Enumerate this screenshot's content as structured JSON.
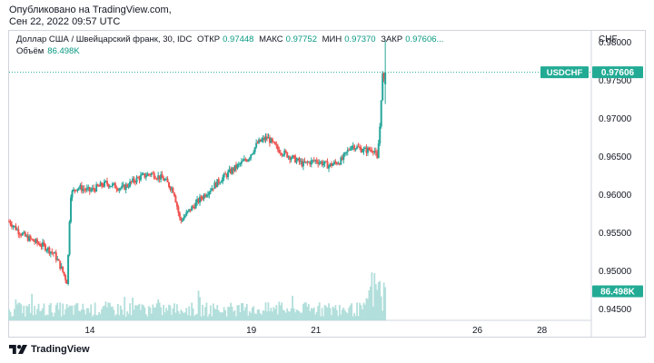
{
  "publication": {
    "line1": "Опубликовано на TradingView.com,",
    "line2": "Сен 22, 2022 09:57 UTC"
  },
  "legend": {
    "symbol_title": "Доллар США / Швейцарский франк, 30, IDC",
    "open_label": "ОТКР",
    "open_value": "0.97448",
    "high_label": "МАКС",
    "high_value": "0.97752",
    "low_label": "МИН",
    "low_value": "0.97370",
    "close_label": "ЗАКР",
    "close_value": "0.97606...",
    "volume_label": "Объём",
    "volume_value": "86.498K"
  },
  "price_scale": {
    "currency": "CHF",
    "last_symbol_label": "USDCHF",
    "last_price_label": "0.97606",
    "volume_label": "86.498K"
  },
  "brand": {
    "name": "TradingView"
  },
  "colors": {
    "up": "#26a69a",
    "down": "#ef5350",
    "volume": "#b2dfdb",
    "last_price": "#22ab94"
  },
  "chart_data": {
    "type": "candlestick",
    "y_ticks": [
      "0.98000",
      "0.97500",
      "0.97000",
      "0.96500",
      "0.96000",
      "0.95500",
      "0.95000",
      "0.94500"
    ],
    "y_tick_values": [
      0.98,
      0.975,
      0.97,
      0.965,
      0.96,
      0.955,
      0.95,
      0.945
    ],
    "ylim": [
      0.9435,
      0.9815
    ],
    "x_ticks": [
      "14",
      "19",
      "21",
      "26",
      "28"
    ],
    "x_tick_days": [
      14,
      19,
      21,
      26,
      28
    ],
    "xlim": [
      11.5,
      29.5
    ],
    "last_price": 0.97606,
    "path": [
      [
        11.5,
        0.9565
      ],
      [
        11.8,
        0.9552
      ],
      [
        12.0,
        0.9545
      ],
      [
        12.3,
        0.9538
      ],
      [
        12.6,
        0.9532
      ],
      [
        12.9,
        0.9522
      ],
      [
        13.1,
        0.9505
      ],
      [
        13.3,
        0.9485
      ],
      [
        13.4,
        0.96
      ],
      [
        13.6,
        0.961
      ],
      [
        14.0,
        0.9605
      ],
      [
        14.5,
        0.9615
      ],
      [
        15.0,
        0.9608
      ],
      [
        15.5,
        0.9622
      ],
      [
        15.9,
        0.9628
      ],
      [
        16.3,
        0.962
      ],
      [
        16.6,
        0.9605
      ],
      [
        16.8,
        0.9565
      ],
      [
        17.1,
        0.958
      ],
      [
        17.5,
        0.9598
      ],
      [
        18.0,
        0.9618
      ],
      [
        18.4,
        0.9632
      ],
      [
        18.9,
        0.9648
      ],
      [
        19.2,
        0.9668
      ],
      [
        19.5,
        0.9675
      ],
      [
        19.8,
        0.966
      ],
      [
        20.2,
        0.965
      ],
      [
        20.6,
        0.964
      ],
      [
        21.0,
        0.9645
      ],
      [
        21.4,
        0.9638
      ],
      [
        21.8,
        0.9645
      ],
      [
        22.1,
        0.9665
      ],
      [
        22.5,
        0.9658
      ],
      [
        22.8,
        0.966
      ],
      [
        22.9,
        0.9645
      ],
      [
        23.0,
        0.97
      ],
      [
        23.05,
        0.976
      ],
      [
        23.12,
        0.9745
      ],
      [
        23.18,
        0.9761
      ]
    ]
  }
}
